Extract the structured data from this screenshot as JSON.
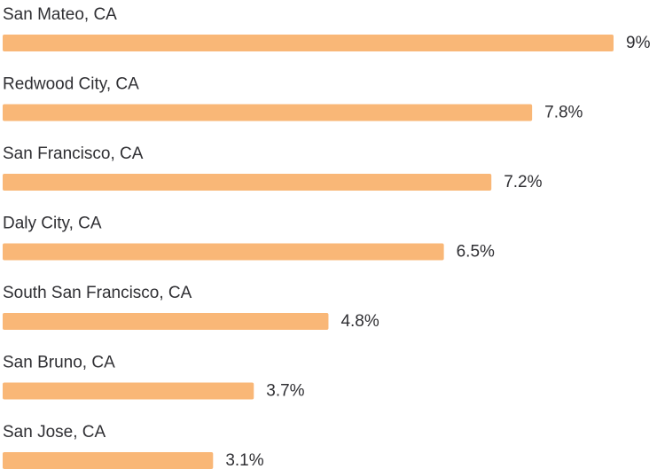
{
  "chart_data": {
    "type": "bar",
    "orientation": "horizontal",
    "categories": [
      "San Mateo, CA",
      "Redwood City, CA",
      "San Francisco, CA",
      "Daly City, CA",
      "South San Francisco, CA",
      "San Bruno, CA",
      "San Jose, CA"
    ],
    "values": [
      9,
      7.8,
      7.2,
      6.5,
      4.8,
      3.7,
      3.1
    ],
    "value_labels": [
      "9%",
      "7.8%",
      "7.2%",
      "6.5%",
      "4.8%",
      "3.7%",
      "3.1%"
    ],
    "color": "#f9b777"
  }
}
